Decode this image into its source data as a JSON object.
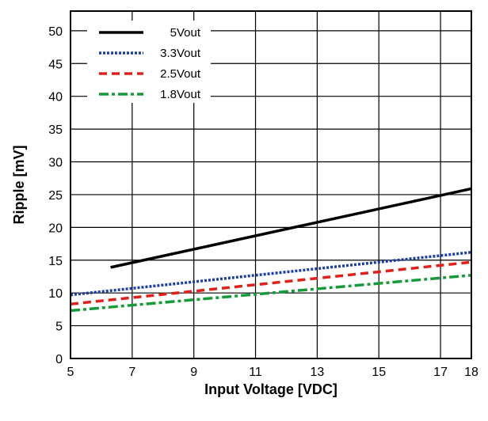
{
  "chart_data": {
    "type": "line",
    "title": "",
    "xlabel": "Input Voltage [VDC]",
    "ylabel": "Ripple [mV]",
    "xlim": [
      5,
      18
    ],
    "ylim": [
      0,
      53
    ],
    "xticks": [
      5,
      7,
      9,
      11,
      13,
      15,
      17,
      18
    ],
    "xtick_labels": [
      "5",
      "7",
      "9",
      "11",
      "13",
      "15",
      "17",
      "18"
    ],
    "yticks": [
      0,
      5,
      10,
      15,
      20,
      25,
      30,
      35,
      40,
      45,
      50
    ],
    "ytick_labels": [
      "0",
      "5",
      "10",
      "15",
      "20",
      "25",
      "30",
      "35",
      "40",
      "45",
      "50"
    ],
    "grid": true,
    "legend_position": "top-left",
    "series": [
      {
        "name": "5Vout",
        "color": "#000000",
        "dash": "solid",
        "x": [
          6.3,
          18
        ],
        "y": [
          13.9,
          25.9
        ]
      },
      {
        "name": "3.3Vout",
        "color": "#1f3fa0",
        "dash": "dotted",
        "x": [
          5,
          18
        ],
        "y": [
          9.7,
          16.2
        ]
      },
      {
        "name": "2.5Vout",
        "color": "#e0201c",
        "dash": "dashed",
        "x": [
          5,
          18
        ],
        "y": [
          8.3,
          14.7
        ]
      },
      {
        "name": "1.8Vout",
        "color": "#169a3a",
        "dash": "dashdot",
        "x": [
          5,
          18
        ],
        "y": [
          7.3,
          12.7
        ]
      }
    ]
  }
}
